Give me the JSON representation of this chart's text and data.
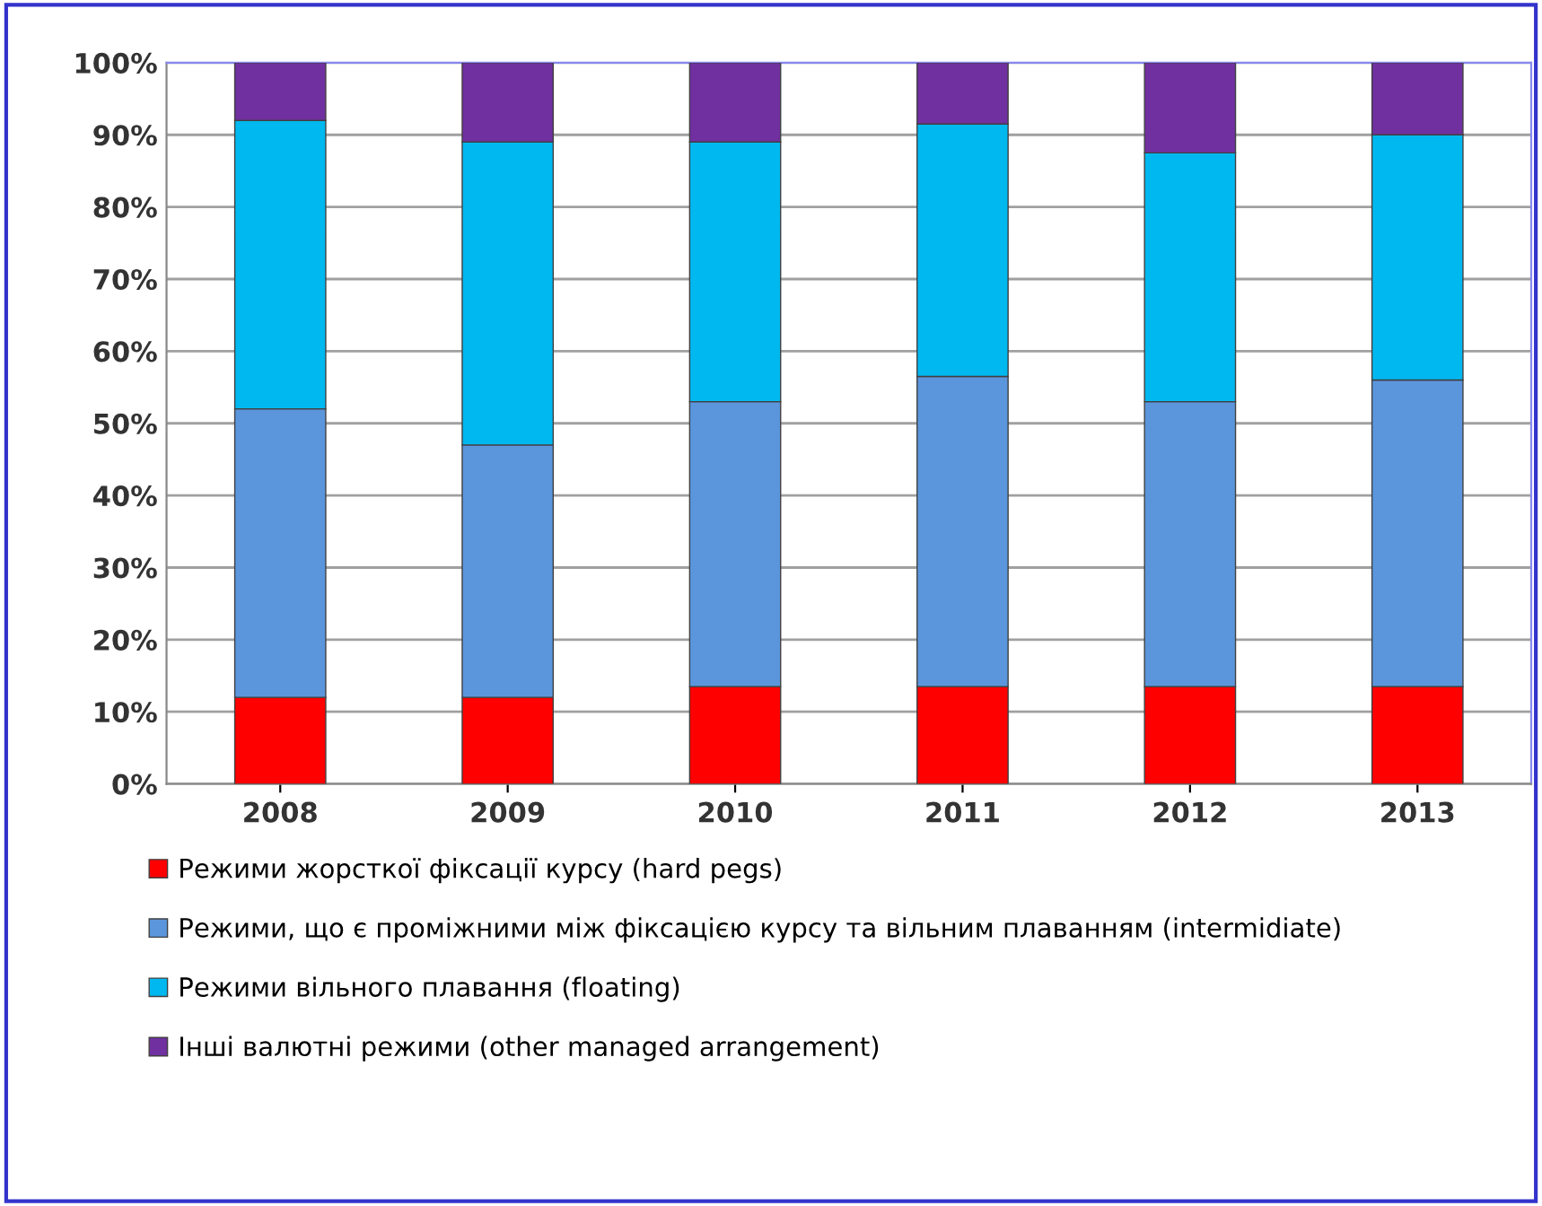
{
  "chart_data": {
    "type": "bar",
    "stacked": true,
    "categories": [
      "2008",
      "2009",
      "2010",
      "2011",
      "2012",
      "2013"
    ],
    "series": [
      {
        "name": "Режими жорсткої фіксації курсу (hard pegs)",
        "color": "#ff0000",
        "values": [
          12,
          12,
          13.5,
          13.5,
          13.5,
          13.5
        ]
      },
      {
        "name": "Режими, що є проміжними між фіксацією курсу та вільним плаванням (intermidiate)",
        "color": "#5b96dc",
        "values": [
          40,
          35,
          39.5,
          43,
          39.5,
          42.5
        ]
      },
      {
        "name": "Режими вільного плавання (floating)",
        "color": "#00b8f0",
        "values": [
          40,
          42,
          36,
          35,
          34.5,
          34
        ]
      },
      {
        "name": "Інші валютні режими (other managed arrangement)",
        "color": "#7030a0",
        "values": [
          8,
          11,
          11,
          8.5,
          12.5,
          10
        ]
      }
    ],
    "ylim": [
      0,
      100
    ],
    "yticks": [
      {
        "value": 0,
        "label": "0%"
      },
      {
        "value": 10,
        "label": "10%"
      },
      {
        "value": 20,
        "label": "20%"
      },
      {
        "value": 30,
        "label": "30%"
      },
      {
        "value": 40,
        "label": "40%"
      },
      {
        "value": 50,
        "label": "50%"
      },
      {
        "value": 60,
        "label": "60%"
      },
      {
        "value": 70,
        "label": "70%"
      },
      {
        "value": 80,
        "label": "80%"
      },
      {
        "value": 90,
        "label": "90%"
      },
      {
        "value": 100,
        "label": "100%"
      }
    ],
    "grid": "y",
    "legend": "bottom"
  }
}
